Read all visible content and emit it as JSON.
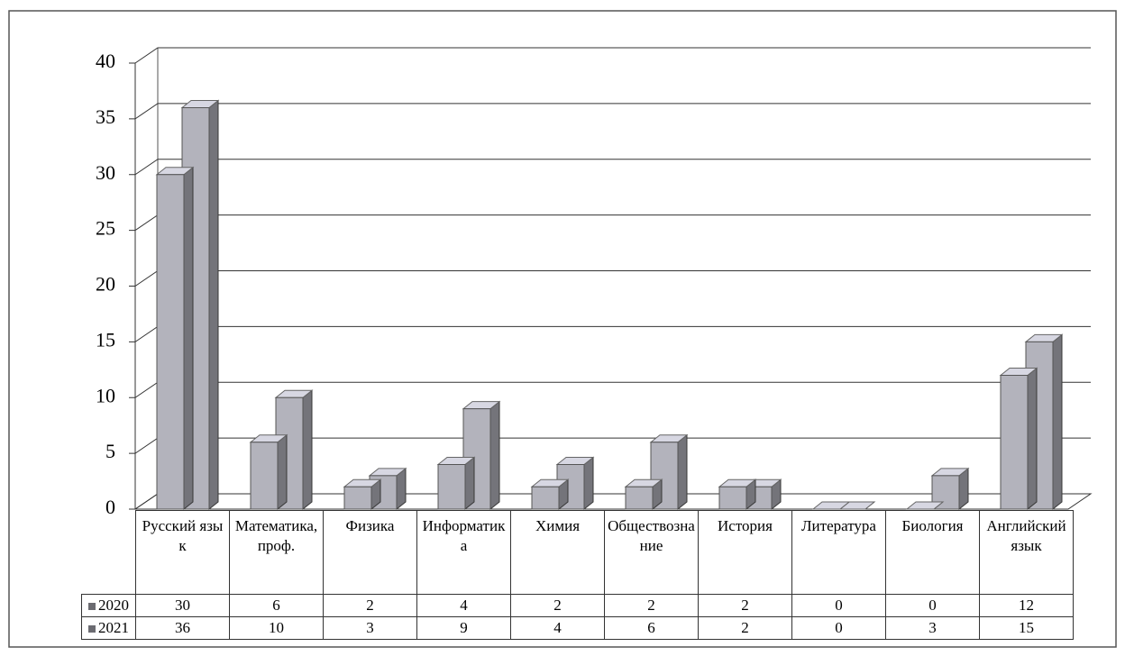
{
  "chart_data": {
    "type": "bar3d",
    "categories": [
      "Русский язык",
      "Математика, проф.",
      "Физика",
      "Информатика",
      "Химия",
      "Обществознание",
      "История",
      "Литература",
      "Биология",
      "Английский язык"
    ],
    "series": [
      {
        "name": "2020",
        "color": "#b3b3bc",
        "values": [
          30,
          6,
          2,
          4,
          2,
          2,
          2,
          0,
          0,
          12
        ]
      },
      {
        "name": "2021",
        "color": "#b3b3bc",
        "values": [
          36,
          10,
          3,
          9,
          4,
          6,
          2,
          0,
          3,
          15
        ]
      }
    ],
    "ylim": [
      0,
      40
    ],
    "yticks": [
      0,
      5,
      10,
      15,
      20,
      25,
      30,
      35,
      40
    ],
    "grid": true
  }
}
